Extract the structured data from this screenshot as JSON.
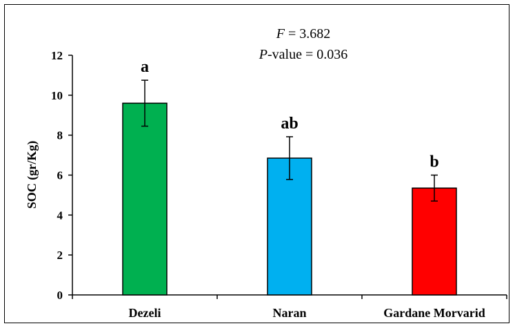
{
  "chart_data": {
    "type": "bar",
    "categories": [
      "Dezeli",
      "Naran",
      "Gardane Morvarid"
    ],
    "values": [
      9.6,
      6.85,
      5.35
    ],
    "error": [
      1.15,
      1.07,
      0.65
    ],
    "colors": [
      "#00B050",
      "#00B0F0",
      "#FF0000"
    ],
    "letters": [
      "a",
      "ab",
      "b"
    ],
    "ylabel": "SOC (gr/Kg)",
    "xlabel": "",
    "ylim": [
      0,
      12
    ],
    "yticks": [
      "0",
      "2",
      "4",
      "6",
      "8",
      "10",
      "12"
    ],
    "stats": {
      "f_symbol": "F",
      "f_text": " = 3.682",
      "p_symbol": "P",
      "p_text": "-value = 0.036"
    },
    "grid": false,
    "legend": "none"
  }
}
